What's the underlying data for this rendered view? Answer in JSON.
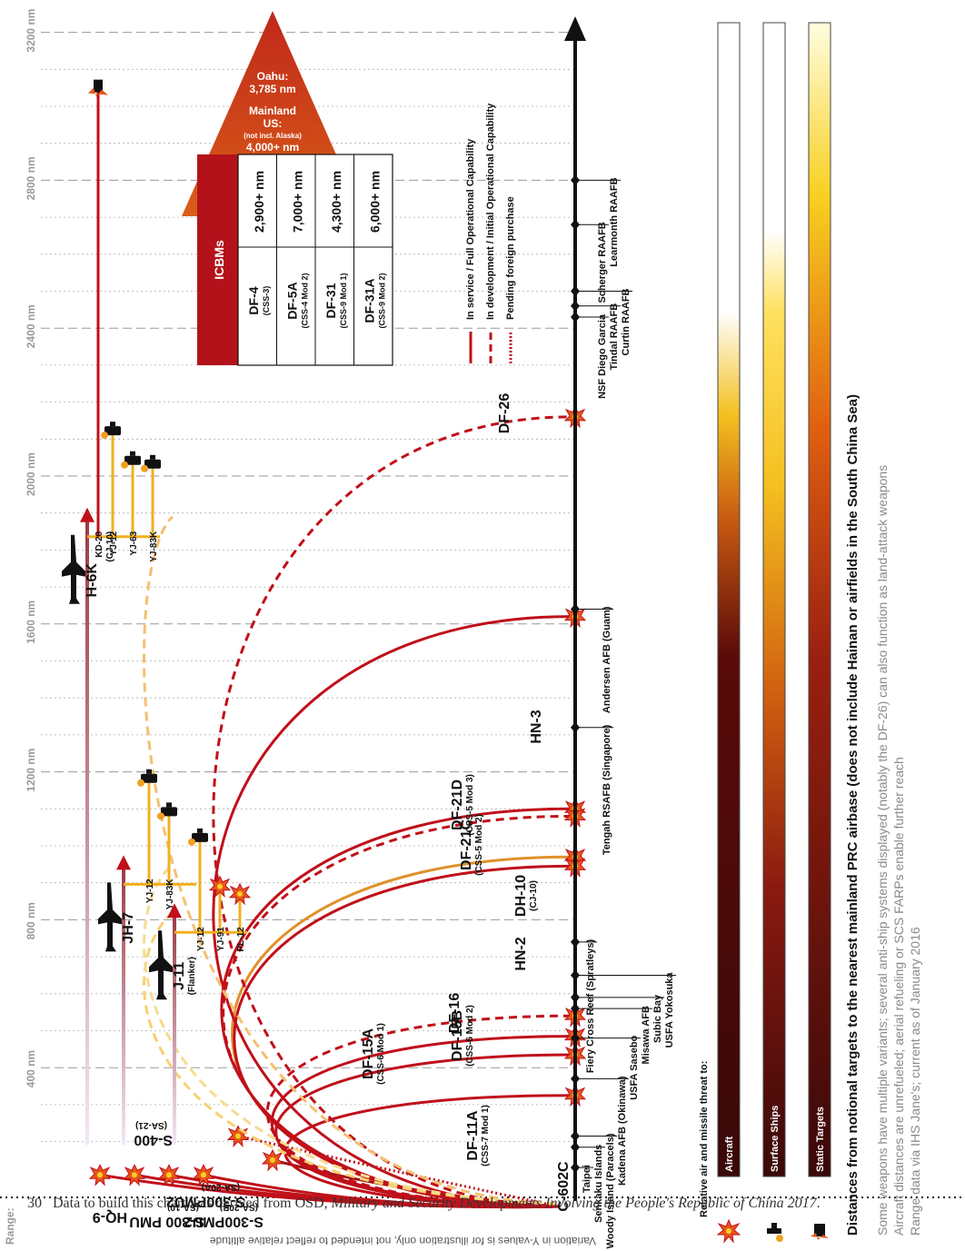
{
  "footnote": {
    "number": "30",
    "prefix": "Data to build this chart was derived from OSD, ",
    "title": "Military and Security Developments Involving the People's Republic of China 2017",
    "suffix": "."
  },
  "rotated": {
    "title": "Distances from notional targets to the nearest mainland PRC airbase (does not include Hainan or airfields in the South China Sea)",
    "notes": [
      "Some weapons have multiple variants; several anti-ship systems displayed (notably the DF-26) can also function as land-attack weapons",
      "Aircraft distances are unrefueled; aerial refueling or SCS FARPs enable further reach",
      "Range data via IHS Jane's; current as of January 2016"
    ],
    "y_note": "Variation in Y-values is for illustration only, not intended to reflect relative altitude",
    "axis_caption": "Range:",
    "relative_threat": "Relative air and missile threat to:"
  },
  "legend": {
    "in_service": "In service / Full Operational Capability",
    "in_development": "In development / Initial Operational Capability",
    "pending": "Pending foreign purchase",
    "colors": {
      "line": "#c0101a",
      "pending": "#c0101a"
    }
  },
  "icbm": {
    "header": "ICBMs",
    "rows": [
      {
        "name": "DF-4",
        "sub": "(CSS-3)",
        "range": "2,900+ nm"
      },
      {
        "name": "DF-5A",
        "sub": "(CSS-4 Mod 2)",
        "range": "7,000+ nm"
      },
      {
        "name": "DF-31",
        "sub": "(CSS-9 Mod 1)",
        "range": "4,300+ nm"
      },
      {
        "name": "DF-31A",
        "sub": "(CSS-9 Mod 2)",
        "range": "6,000+ nm"
      }
    ],
    "arrow_lines": [
      "Oahu:",
      "3,785 nm",
      "Mainland",
      "US:",
      "(not incl. Alaska)",
      "4,000+ nm"
    ],
    "colors": {
      "header": "#b3121b",
      "arrow_top": "#c0281a",
      "arrow_bottom": "#e8a21a"
    }
  },
  "threat_bars": [
    {
      "label": "Aircraft",
      "icon": "aircraft-burst-icon"
    },
    {
      "label": "Surface Ships",
      "icon": "ship-burst-icon"
    },
    {
      "label": "Static Targets",
      "icon": "static-target-burst-icon"
    }
  ],
  "chart_data": {
    "type": "range-chart",
    "x_axis": {
      "unit": "nm",
      "ticks": [
        400,
        800,
        1200,
        1600,
        2000,
        2400,
        2800,
        3200
      ],
      "tick_labels": [
        "400 nm",
        "800 nm",
        "1200 nm",
        "1600 nm",
        "2000 nm",
        "2400 nm",
        "2800 nm",
        "3200 nm"
      ],
      "range": [
        0,
        3300
      ],
      "grid": "dashed"
    },
    "targets": [
      {
        "name": "Taipei",
        "range_nm": 130
      },
      {
        "name": "Senkaku Islands",
        "range_nm": 185
      },
      {
        "name": "Woody Island (Paracels)",
        "range_nm": 215
      },
      {
        "name": "Kadena AFB (Okinawa)",
        "range_nm": 370
      },
      {
        "name": "USFA Sasebo",
        "range_nm": 480
      },
      {
        "name": "Misawa AFB",
        "range_nm": 560
      },
      {
        "name": "Subic Bay",
        "range_nm": 590
      },
      {
        "name": "USFA Yokosuka",
        "range_nm": 650
      },
      {
        "name": "Fiery Cross Reef (Spratleys)",
        "range_nm": 740
      },
      {
        "name": "Tengah RSAFB (Singapore)",
        "range_nm": 1320
      },
      {
        "name": "Andersen AFB (Guam)",
        "range_nm": 1640
      },
      {
        "name": "NSF Diego Garcia",
        "range_nm": 2430
      },
      {
        "name": "Tindal RAAFB",
        "range_nm": 2460
      },
      {
        "name": "Curtin RAAFB",
        "range_nm": 2500
      },
      {
        "name": "Scherger RAAFB",
        "range_nm": 2680
      },
      {
        "name": "Learmonth RAAFB",
        "range_nm": 2800
      }
    ],
    "missiles": [
      {
        "name": "HQ-9",
        "sub": "",
        "range_nm": 110,
        "status": "in service"
      },
      {
        "name": "S-300 PMU",
        "sub": "(SA-10)",
        "range_nm": 110,
        "status": "in service"
      },
      {
        "name": "S-300PMU2",
        "sub": "(SA-20A)",
        "range_nm": 110,
        "status": "in service"
      },
      {
        "name": "S-300PMU2",
        "sub": "(SA-20B)",
        "range_nm": 110,
        "status": "in service"
      },
      {
        "name": "S-400",
        "sub": "(SA-21)",
        "range_nm": 215,
        "status": "pending foreign purchase"
      },
      {
        "name": "C-602C",
        "sub": "",
        "range_nm": 150,
        "status": "in service"
      },
      {
        "name": "DF-11A",
        "sub": "(CSS-7 Mod 1)",
        "range_nm": 325,
        "status": "in service"
      },
      {
        "name": "DF-15A",
        "sub": "(CSS-6 Mod 1)",
        "range_nm": 485,
        "status": "in service"
      },
      {
        "name": "DF-15B",
        "sub": "(CSS-6 Mod 2)",
        "range_nm": 435,
        "status": "in service"
      },
      {
        "name": "DF-16",
        "sub": "",
        "range_nm": 540,
        "status": "in development"
      },
      {
        "name": "HN-2",
        "sub": "",
        "range_nm": 970,
        "status": "in service"
      },
      {
        "name": "DH-10",
        "sub": "(CJ-10)",
        "range_nm": 1100,
        "status": "in service"
      },
      {
        "name": "DF-21C",
        "sub": "(CSS-5 Mod 2)",
        "range_nm": 945,
        "status": "in service"
      },
      {
        "name": "DF-21D",
        "sub": "(CSS-5 Mod 3)",
        "range_nm": 1080,
        "status": "in development"
      },
      {
        "name": "HN-3",
        "sub": "",
        "range_nm": 1620,
        "status": "in service"
      },
      {
        "name": "DF-26",
        "sub": "",
        "range_nm": 2160,
        "status": "in development"
      }
    ],
    "aircraft": [
      {
        "name": "J-11",
        "sub": "(Flanker)",
        "range_nm": 820,
        "weapons": [
          {
            "name": "YJ-12",
            "range_nm": 1020
          },
          {
            "name": "YJ-91",
            "range_nm": 890
          },
          {
            "name": "PL-12",
            "range_nm": 870
          }
        ]
      },
      {
        "name": "JH-7",
        "sub": "",
        "range_nm": 950,
        "weapons": [
          {
            "name": "YJ-12",
            "range_nm": 1180
          },
          {
            "name": "YJ-83K",
            "range_nm": 1090
          }
        ]
      },
      {
        "name": "H-6K",
        "sub": "",
        "range_nm": 1890,
        "weapons": [
          {
            "name": "YJ-12",
            "range_nm": 2120
          },
          {
            "name": "YJ-63",
            "range_nm": 2040
          },
          {
            "name": "YJ-83K",
            "range_nm": 2030
          },
          {
            "name": "KD-20",
            "sub": "(CJ-10)",
            "range_nm": 3050
          }
        ]
      }
    ]
  }
}
